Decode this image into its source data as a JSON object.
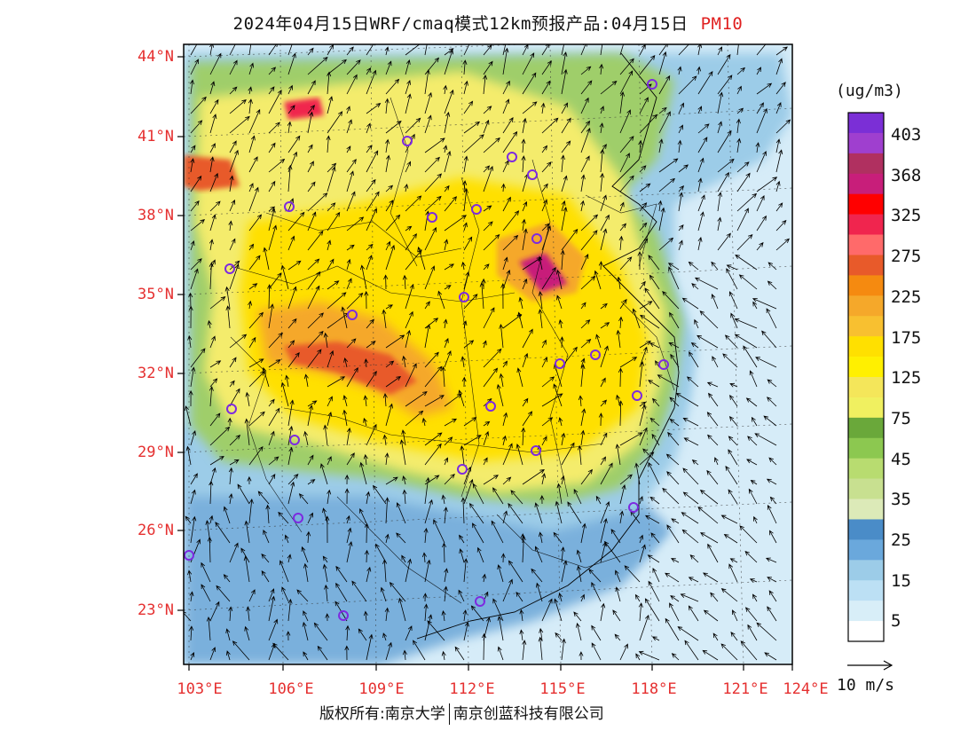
{
  "header": {
    "title": "2024年04月15日WRF/cmaq模式12km预报产品:04月15日",
    "variable": "PM10"
  },
  "axes": {
    "lat_labels": [
      "44°N",
      "41°N",
      "38°N",
      "35°N",
      "32°N",
      "29°N",
      "26°N",
      "23°N"
    ],
    "lon_labels": [
      "103°E",
      "106°E",
      "109°E",
      "112°E",
      "115°E",
      "118°E",
      "121°E",
      "124°E"
    ]
  },
  "colorbar": {
    "unit": "(ug/m3)",
    "labels": [
      "403",
      "368",
      "325",
      "275",
      "225",
      "175",
      "125",
      "75",
      "45",
      "35",
      "25",
      "15",
      "5"
    ],
    "colors": [
      "#7b2fd6",
      "#9f3fcf",
      "#b03060",
      "#c81e7a",
      "#ff0000",
      "#f0254e",
      "#ff6a6a",
      "#e85a2a",
      "#f58a10",
      "#f5a82a",
      "#f8c030",
      "#ffe000",
      "#fff000",
      "#f4e65a",
      "#f0f060",
      "#6aa83a",
      "#8cc850",
      "#b8dc70",
      "#c8e090",
      "#dceab8",
      "#4a8cc8",
      "#6aa8dc",
      "#9ccce8",
      "#bce0f4",
      "#d8eef8",
      "#ffffff"
    ]
  },
  "wind_scale": {
    "label": "10 m/s"
  },
  "footer": {
    "left": "版权所有:南京大学",
    "right": "南京创蓝科技有限公司"
  },
  "map_colors": {
    "sea": "#d6ecf8",
    "land_clean": "#7ab0dc",
    "coast_green": "#9fce6a",
    "moderate": "#f4ec6c",
    "high": "#ffe000",
    "very_high": "#f5a82a",
    "extreme": "#e85a2a",
    "peak": "#c81e7a"
  }
}
